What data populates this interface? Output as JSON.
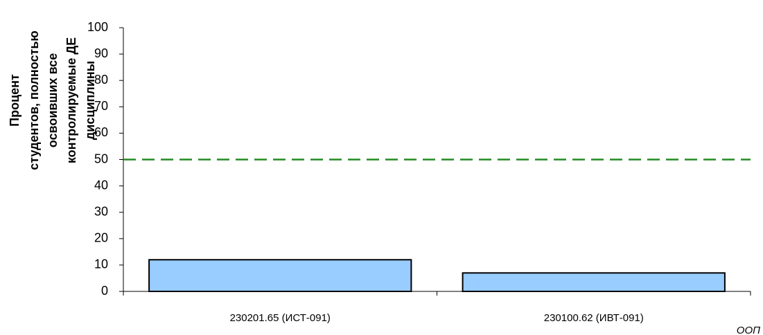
{
  "chart_data": {
    "type": "bar",
    "y_label": [
      "Процент",
      "студентов, полностью",
      "освоивших все",
      "контролируемые ДЕ",
      "дисциплины"
    ],
    "x_label": "ООП",
    "categories": [
      "230201.65 (ИСТ-091)",
      "230100.62 (ИВТ-091)"
    ],
    "values": [
      12,
      7
    ],
    "color": "#99ccff",
    "ylim": [
      0,
      100
    ],
    "yticks": [
      0,
      10,
      20,
      30,
      40,
      50,
      60,
      70,
      80,
      90,
      100
    ],
    "grid": false,
    "reference_line": {
      "value": 50,
      "color": "#228b22"
    }
  }
}
